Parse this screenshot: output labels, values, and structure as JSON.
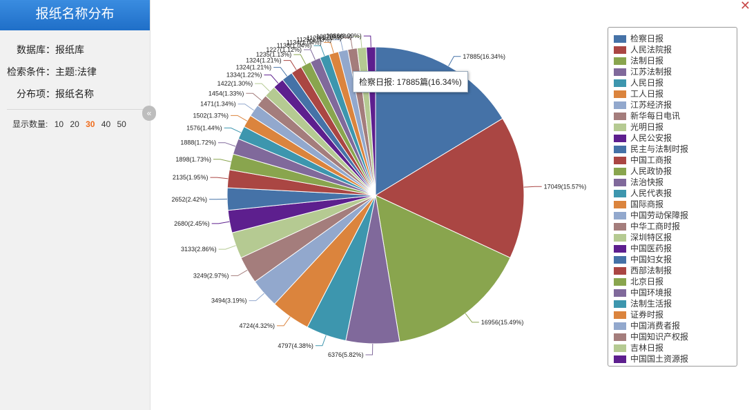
{
  "sidebar": {
    "title": "报纸名称分布",
    "database_label": "数据库：报纸库",
    "condition_label": "检索条件：主题:法律",
    "dist_label": "分布项：报纸名称",
    "count_label": "显示数量:",
    "count_options": [
      "10",
      "20",
      "30",
      "40",
      "50"
    ],
    "active_count": "30"
  },
  "tooltip": "检察日报: 17885篇(16.34%)",
  "chart_data": {
    "type": "pie",
    "legend_position": "right",
    "slices": [
      {
        "name": "检察日报",
        "value": 17885,
        "label": "17885(16.34%)",
        "color": "#4572a7"
      },
      {
        "name": "人民法院报",
        "value": 17049,
        "label": "17049(15.57%)",
        "color": "#aa4643"
      },
      {
        "name": "法制日报",
        "value": 16956,
        "label": "16956(15.49%)",
        "color": "#89a54e"
      },
      {
        "name": "江苏法制报",
        "value": 6376,
        "label": "6376(5.82%)",
        "color": "#80699b"
      },
      {
        "name": "人民日报",
        "value": 4797,
        "label": "4797(4.38%)",
        "color": "#3d96ae"
      },
      {
        "name": "工人日报",
        "value": 4724,
        "label": "4724(4.32%)",
        "color": "#db843d"
      },
      {
        "name": "江苏经济报",
        "value": 3494,
        "label": "3494(3.19%)",
        "color": "#92a8cd"
      },
      {
        "name": "新华每日电讯",
        "value": 3249,
        "label": "3249(2.97%)",
        "color": "#a47d7c"
      },
      {
        "name": "光明日报",
        "value": 3133,
        "label": "3133(2.86%)",
        "color": "#b5ca92"
      },
      {
        "name": "人民公安报",
        "value": 2680,
        "label": "2680(2.45%)",
        "color": "#5d1f8e"
      },
      {
        "name": "民主与法制时报",
        "value": 2652,
        "label": "2652(2.42%)",
        "color": "#4572a7"
      },
      {
        "name": "中国工商报",
        "value": 2135,
        "label": "2135(1.95%)",
        "color": "#aa4643"
      },
      {
        "name": "人民政协报",
        "value": 1898,
        "label": "1898(1.73%)",
        "color": "#89a54e"
      },
      {
        "name": "法治快报",
        "value": 1888,
        "label": "1888(1.72%)",
        "color": "#80699b"
      },
      {
        "name": "人民代表报",
        "value": 1576,
        "label": "1576(1.44%)",
        "color": "#3d96ae"
      },
      {
        "name": "国际商报",
        "value": 1502,
        "label": "1502(1.37%)",
        "color": "#db843d"
      },
      {
        "name": "中国劳动保障报",
        "value": 1471,
        "label": "1471(1.34%)",
        "color": "#92a8cd"
      },
      {
        "name": "中华工商时报",
        "value": 1454,
        "label": "1454(1.33%)",
        "color": "#a47d7c"
      },
      {
        "name": "深圳特区报",
        "value": 1422,
        "label": "1422(1.30%)",
        "color": "#b5ca92"
      },
      {
        "name": "中国医药报",
        "value": 1334,
        "label": "1334(1.22%)",
        "color": "#5d1f8e"
      },
      {
        "name": "中国妇女报",
        "value": 1324,
        "label": "1324(1.21%)",
        "color": "#4572a7"
      },
      {
        "name": "西部法制报",
        "value": 1324,
        "label": "1324(1.21%)",
        "color": "#aa4643"
      },
      {
        "name": "北京日报",
        "value": 1235,
        "label": "1235(1.13%)",
        "color": "#89a54e"
      },
      {
        "name": "中国环境报",
        "value": 1227,
        "label": "1227(1.12%)",
        "color": "#80699b"
      },
      {
        "name": "法制生活报",
        "value": 1138,
        "label": "1138(1.04%)",
        "color": "#3d96ae"
      },
      {
        "name": "证券时报",
        "value": 1134,
        "label": "1134(1.04%)",
        "color": "#db843d"
      },
      {
        "name": "中国消费者报",
        "value": 1125,
        "label": "1125(1.03%)",
        "color": "#92a8cd"
      },
      {
        "name": "中国知识产权报",
        "value": 1120,
        "label": "1120(1.02%)",
        "color": "#a47d7c"
      },
      {
        "name": "吉林日报",
        "value": 1087,
        "label": "1087(0.99%)",
        "color": "#b5ca92"
      },
      {
        "name": "中国国土资源报",
        "value": 1086,
        "label": "1086(0.99%)",
        "color": "#5d1f8e"
      }
    ]
  }
}
